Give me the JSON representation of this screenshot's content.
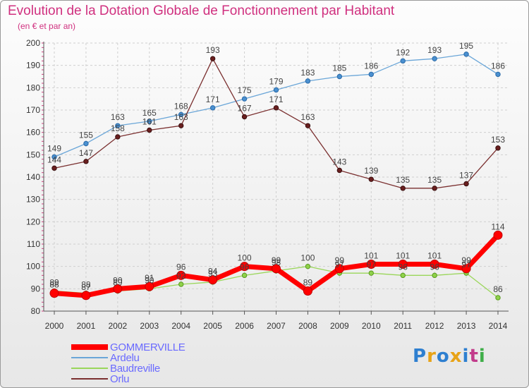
{
  "header": {
    "title": "Evolution de la Dotation Globale de Fonctionnement par Habitant",
    "subtitle": "(en € et par an)"
  },
  "logo": {
    "text": "Proxiti",
    "colors": [
      "#2e7fd0",
      "#e8a317",
      "#2e7fd0",
      "#e8a317",
      "#2e7fd0",
      "#c23b8b",
      "#3fae49"
    ]
  },
  "chart_data": {
    "type": "line",
    "title": "Evolution de la Dotation Globale de Fonctionnement par Habitant",
    "subtitle": "(en € et par an)",
    "xlabel": "",
    "ylabel": "",
    "categories": [
      "2000",
      "2001",
      "2002",
      "2003",
      "2004",
      "2005",
      "2006",
      "2007",
      "2008",
      "2009",
      "2010",
      "2011",
      "2012",
      "2013",
      "2014"
    ],
    "ylim": [
      80,
      200
    ],
    "yticks": [
      80,
      90,
      100,
      110,
      120,
      130,
      140,
      150,
      160,
      170,
      180,
      190,
      200
    ],
    "grid": true,
    "legend_position": "bottom-left",
    "series": [
      {
        "name": "GOMMERVILLE",
        "color": "#ff0000",
        "values": [
          88,
          87,
          90,
          91,
          96,
          94,
          100,
          99,
          89,
          99,
          101,
          101,
          101,
          99,
          114
        ]
      },
      {
        "name": "Ardelu",
        "color": "#6aa6d8",
        "values": [
          149,
          155,
          163,
          165,
          168,
          171,
          175,
          179,
          183,
          185,
          186,
          192,
          193,
          195,
          186
        ]
      },
      {
        "name": "Baudreville",
        "color": "#9ad65a",
        "values": [
          89,
          88,
          89,
          90,
          92,
          93,
          96,
          98,
          100,
          97,
          97,
          96,
          96,
          97,
          86
        ]
      },
      {
        "name": "Orlu",
        "color": "#7a2f2f",
        "values": [
          144,
          147,
          158,
          161,
          163,
          193,
          167,
          171,
          163,
          143,
          139,
          135,
          135,
          137,
          153
        ]
      }
    ]
  }
}
